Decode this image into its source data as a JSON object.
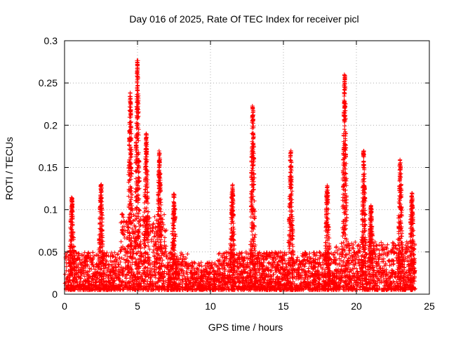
{
  "chart_data": {
    "type": "scatter",
    "title": "Day 016 of 2025, Rate Of TEC Index for receiver picl",
    "xlabel": "GPS time / hours",
    "ylabel": "ROTI / TECUs",
    "xlim": [
      0,
      25
    ],
    "ylim": [
      0,
      0.3
    ],
    "x_ticks": [
      0,
      5,
      10,
      15,
      20,
      25
    ],
    "x_tick_labels": [
      "0",
      "5",
      "10",
      "15",
      "20",
      "25"
    ],
    "y_ticks": [
      0,
      0.05,
      0.1,
      0.15,
      0.2,
      0.25,
      0.3
    ],
    "y_tick_labels": [
      "0",
      "0.05",
      "0.1",
      "0.15",
      "0.2",
      "0.25",
      "0.3"
    ],
    "grid": true,
    "marker": "+",
    "color": "#ff0000",
    "series": [
      {
        "name": "ROTI",
        "description": "dense cloud of samples from 0 to 24 h; baseline mostly 0.005–0.05 TECU with arcs reaching up to ~0.28 TECU",
        "peaks": [
          {
            "x": 0.5,
            "y": 0.115
          },
          {
            "x": 2.5,
            "y": 0.13
          },
          {
            "x": 4.5,
            "y": 0.24
          },
          {
            "x": 5.0,
            "y": 0.28
          },
          {
            "x": 5.6,
            "y": 0.19
          },
          {
            "x": 6.5,
            "y": 0.17
          },
          {
            "x": 7.5,
            "y": 0.12
          },
          {
            "x": 11.5,
            "y": 0.13
          },
          {
            "x": 12.9,
            "y": 0.224
          },
          {
            "x": 15.5,
            "y": 0.17
          },
          {
            "x": 18.0,
            "y": 0.13
          },
          {
            "x": 19.2,
            "y": 0.26
          },
          {
            "x": 20.5,
            "y": 0.17
          },
          {
            "x": 21.0,
            "y": 0.105
          },
          {
            "x": 23.0,
            "y": 0.16
          },
          {
            "x": 23.8,
            "y": 0.12
          }
        ]
      }
    ]
  }
}
